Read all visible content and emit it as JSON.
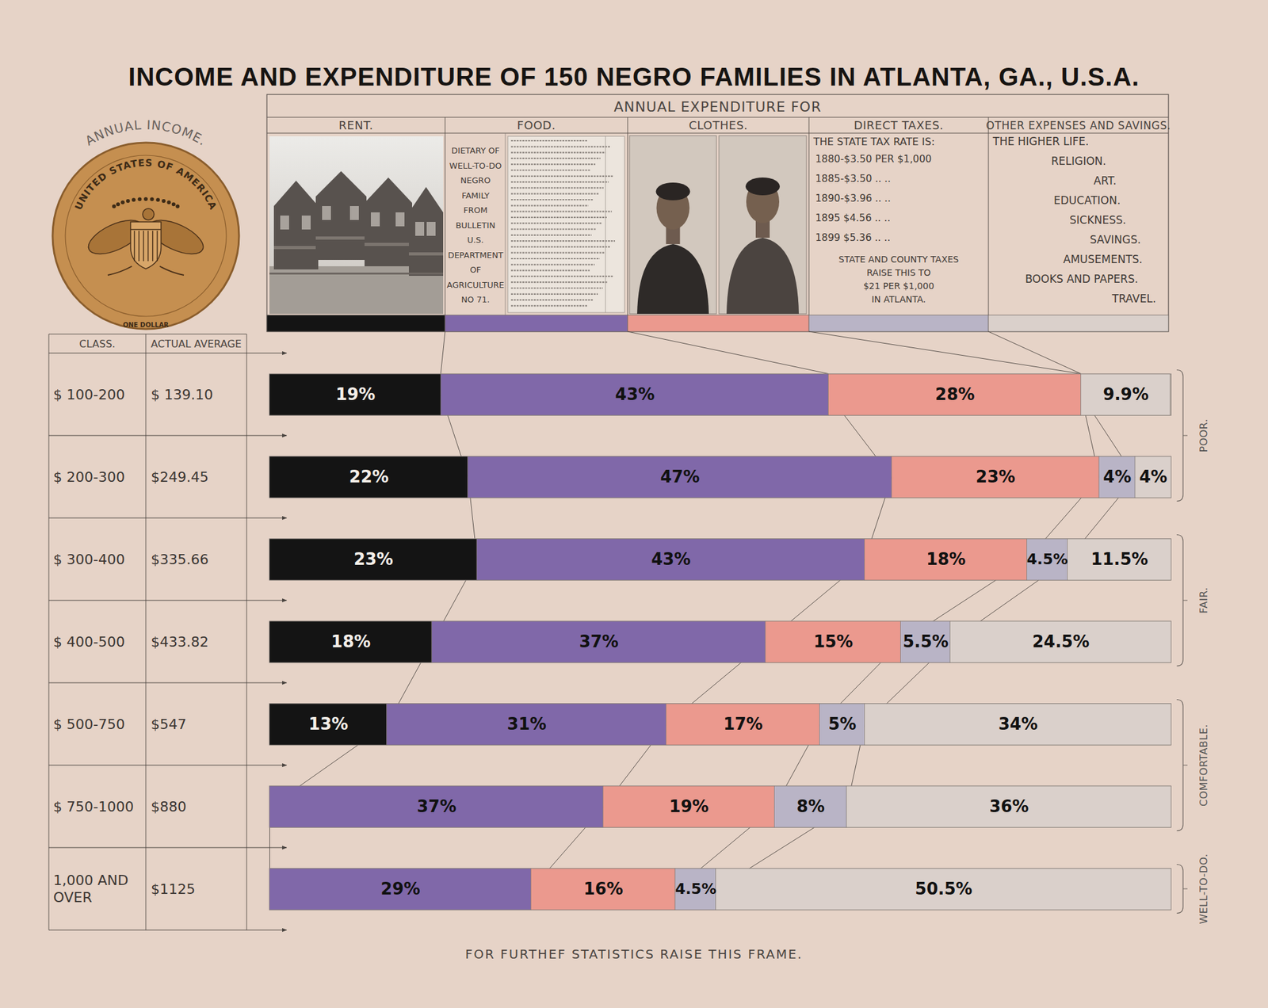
{
  "chart_data": {
    "type": "bar",
    "title": "INCOME AND EXPENDITURE OF 150 NEGRO FAMILIES IN ATLANTA, GA., U.S.A.",
    "orientation": "horizontal",
    "stacked": true,
    "data_labels": true,
    "tick_labels": "y",
    "xlim": [
      0,
      100
    ],
    "categories": [
      "$ 100-200",
      "$ 200-300",
      "$ 300-400",
      "$ 400-500",
      "$ 500-750",
      "$ 750-1000",
      "1,000 AND OVER"
    ],
    "series": [
      {
        "name": "RENT.",
        "color": "#141414",
        "values": [
          19,
          22,
          23,
          18,
          13,
          null,
          null
        ],
        "value_labels": [
          "19%",
          "22%",
          "23%",
          "18%",
          "13%",
          null,
          null
        ]
      },
      {
        "name": "FOOD.",
        "color": "#8068a9",
        "values": [
          43,
          47,
          43,
          37,
          31,
          37,
          29
        ],
        "value_labels": [
          "43%",
          "47%",
          "43%",
          "37%",
          "31%",
          "37%",
          "29%"
        ]
      },
      {
        "name": "CLOTHES.",
        "color": "#eb998e",
        "values": [
          28,
          23,
          18,
          15,
          17,
          19,
          16
        ],
        "value_labels": [
          "28%",
          "23%",
          "18%",
          "15%",
          "17%",
          "19%",
          "16%"
        ]
      },
      {
        "name": "DIRECT TAXES.",
        "color": "#b9b4c6",
        "values": [
          null,
          4,
          4.5,
          5.5,
          5,
          8,
          4.5
        ],
        "value_labels": [
          null,
          "4%",
          "4.5%",
          "5.5%",
          "5%",
          "8%",
          "4.5%"
        ]
      },
      {
        "name": "OTHER EXPENSES AND SAVINGS.",
        "color": "#dad0cb",
        "values": [
          9.9,
          4,
          11.5,
          24.5,
          34,
          36,
          50.5
        ],
        "value_labels": [
          "9.9%",
          "4%",
          "11.5%",
          "24.5%",
          "34%",
          "36%",
          "50.5%"
        ]
      }
    ],
    "expenditure_heading": "ANNUAL EXPENDITURE FOR",
    "class_heading": "CLASS.",
    "actual_average": {
      "heading": "ACTUAL AVERAGE",
      "labels": [
        "$ 139.10",
        "$249.45",
        "$335.66",
        "$433.82",
        "$547",
        "$880",
        "$1125"
      ]
    },
    "groups": [
      {
        "label": "POOR.",
        "categories": [
          "$ 100-200",
          "$ 200-300"
        ]
      },
      {
        "label": "FAIR.",
        "categories": [
          "$ 300-400",
          "$ 400-500"
        ]
      },
      {
        "label": "COMFORTABLE.",
        "categories": [
          "$ 500-750",
          "$ 750-1000"
        ]
      },
      {
        "label": "WELL-TO-DO.",
        "categories": [
          "1,000 AND OVER"
        ]
      }
    ],
    "income": {
      "heading": "ANNUAL INCOME.",
      "coin_legend": "UNITED STATES OF AMERICA",
      "coin_value": "ONE DOLLAR"
    },
    "food_note": [
      "DIETARY OF",
      "WELL-TO-DO",
      "NEGRO",
      "FAMILY",
      "FROM",
      "BULLETIN",
      "U.S.",
      "DEPARTMENT",
      "OF",
      "AGRICULTURE",
      "NO 71."
    ],
    "tax_note": {
      "heading": "THE STATE TAX RATE IS:",
      "lines": [
        "1880-$3.50 PER $1,000",
        "1885-$3.50 .. ..",
        "1890-$3.96 .. ..",
        "1895 $4.56 .. ..",
        "1899 $5.36 .. .."
      ],
      "note": [
        "STATE AND COUNTY TAXES",
        "RAISE THIS TO",
        "$21 PER $1,000",
        "IN ATLANTA."
      ]
    },
    "other_items": [
      "THE HIGHER LIFE.",
      "RELIGION.",
      "ART.",
      "EDUCATION.",
      "SICKNESS.",
      "SAVINGS.",
      "AMUSEMENTS.",
      "BOOKS AND PAPERS.",
      "TRAVEL."
    ],
    "footer": "FOR FURTHEF STATISTICS RAISE THIS FRAME."
  }
}
